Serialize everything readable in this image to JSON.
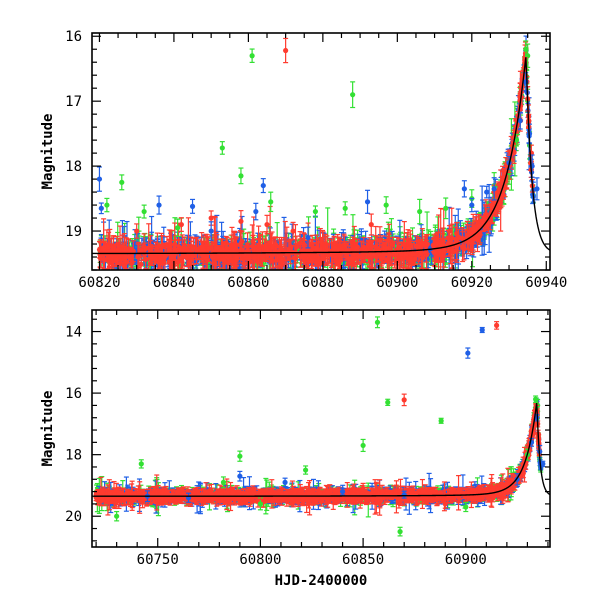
{
  "colors": {
    "green": "#33e033",
    "red": "#ff3b2f",
    "blue": "#1f5fe6",
    "model": "#000000"
  },
  "chart_data": [
    {
      "type": "scatter",
      "panel": "top",
      "xlabel": "",
      "ylabel": "Magnitude",
      "xlim": [
        60818,
        60941
      ],
      "ylim": [
        19.6,
        15.95
      ],
      "y_inverted": true,
      "xticks": [
        60820,
        60840,
        60860,
        60880,
        60900,
        60920,
        60940
      ],
      "yticks": [
        16,
        17,
        18,
        19
      ],
      "series": [
        {
          "color_key": "green",
          "points": [
            [
              60822,
              18.6
            ],
            [
              60826,
              18.25
            ],
            [
              60832,
              18.7
            ],
            [
              60841,
              18.95
            ],
            [
              60853,
              17.72
            ],
            [
              60858,
              18.15
            ],
            [
              60861,
              16.3
            ],
            [
              60866,
              18.55
            ],
            [
              60878,
              18.7
            ],
            [
              60886,
              18.65
            ],
            [
              60888,
              16.9
            ],
            [
              60897,
              18.6
            ],
            [
              60906,
              18.7
            ],
            [
              60913,
              18.65
            ],
            [
              60920,
              18.5
            ],
            [
              60926,
              18.3
            ],
            [
              60930,
              18.1
            ],
            [
              60932,
              17.6
            ],
            [
              60934.5,
              16.2
            ],
            [
              60935,
              16.3
            ]
          ]
        },
        {
          "color_key": "red",
          "points": [
            [
              60830,
              19.0
            ],
            [
              60842,
              18.9
            ],
            [
              60850,
              18.8
            ],
            [
              60858,
              18.85
            ],
            [
              60865,
              18.9
            ],
            [
              60870,
              16.22
            ],
            [
              60872,
              19.0
            ],
            [
              60893,
              18.9
            ],
            [
              60914,
              19.0
            ],
            [
              60926,
              18.4
            ],
            [
              60930,
              18.0
            ],
            [
              60933,
              17.3
            ],
            [
              60934.3,
              16.5
            ],
            [
              60934.8,
              16.7
            ],
            [
              60935.3,
              17.3
            ],
            [
              60936,
              17.8
            ]
          ]
        },
        {
          "color_key": "blue",
          "points": [
            [
              60820,
              18.2
            ],
            [
              60820.5,
              18.65
            ],
            [
              60836,
              18.6
            ],
            [
              60845,
              18.62
            ],
            [
              60850,
              19.0
            ],
            [
              60862,
              18.7
            ],
            [
              60864,
              18.3
            ],
            [
              60876,
              19.1
            ],
            [
              60892,
              18.55
            ],
            [
              60918,
              18.35
            ],
            [
              60920,
              18.6
            ],
            [
              60924,
              18.4
            ],
            [
              60926,
              18.35
            ],
            [
              60930,
              17.95
            ],
            [
              60933,
              17.3
            ],
            [
              60934.5,
              16.7
            ],
            [
              60935.5,
              17.5
            ],
            [
              60936.2,
              18.0
            ],
            [
              60937.5,
              18.35
            ]
          ]
        }
      ],
      "model_curve": {
        "x0": 60934.6,
        "peak_mag": 16.35,
        "base_mag": 19.35
      }
    },
    {
      "type": "scatter",
      "panel": "bottom",
      "xlabel": "HJD-2400000",
      "ylabel": "Magnitude",
      "xlim": [
        60718,
        60941
      ],
      "ylim": [
        21.0,
        13.3
      ],
      "y_inverted": true,
      "xticks": [
        60750,
        60800,
        60850,
        60900
      ],
      "yticks": [
        14,
        16,
        18,
        20
      ],
      "series": [
        {
          "color_key": "green",
          "points": [
            [
              60730,
              20.0
            ],
            [
              60742,
              18.3
            ],
            [
              60782,
              18.9
            ],
            [
              60790,
              18.05
            ],
            [
              60800,
              19.6
            ],
            [
              60822,
              18.5
            ],
            [
              60850,
              17.7
            ],
            [
              60857,
              13.7
            ],
            [
              60862,
              16.3
            ],
            [
              60868,
              20.5
            ],
            [
              60888,
              16.9
            ],
            [
              60900,
              19.7
            ],
            [
              60930,
              18.0
            ],
            [
              60934,
              16.2
            ],
            [
              60935,
              16.4
            ]
          ]
        },
        {
          "color_key": "red",
          "points": [
            [
              60760,
              19.2
            ],
            [
              60800,
              19.3
            ],
            [
              60850,
              19.1
            ],
            [
              60870,
              16.22
            ],
            [
              60890,
              19.6
            ],
            [
              60915,
              13.8
            ],
            [
              60928,
              18.6
            ],
            [
              60933,
              17.3
            ],
            [
              60934.5,
              16.6
            ],
            [
              60935.5,
              17.5
            ]
          ]
        },
        {
          "color_key": "blue",
          "points": [
            [
              60745,
              19.35
            ],
            [
              60765,
              19.4
            ],
            [
              60790,
              18.7
            ],
            [
              60812,
              18.9
            ],
            [
              60840,
              19.2
            ],
            [
              60870,
              19.3
            ],
            [
              60901,
              14.7
            ],
            [
              60908,
              13.95
            ],
            [
              60925,
              18.8
            ],
            [
              60932,
              17.6
            ],
            [
              60934.5,
              16.8
            ],
            [
              60936,
              17.9
            ],
            [
              60937.5,
              18.3
            ]
          ]
        }
      ],
      "model_curve": {
        "x0": 60934.6,
        "peak_mag": 16.35,
        "base_mag": 19.35
      }
    }
  ]
}
